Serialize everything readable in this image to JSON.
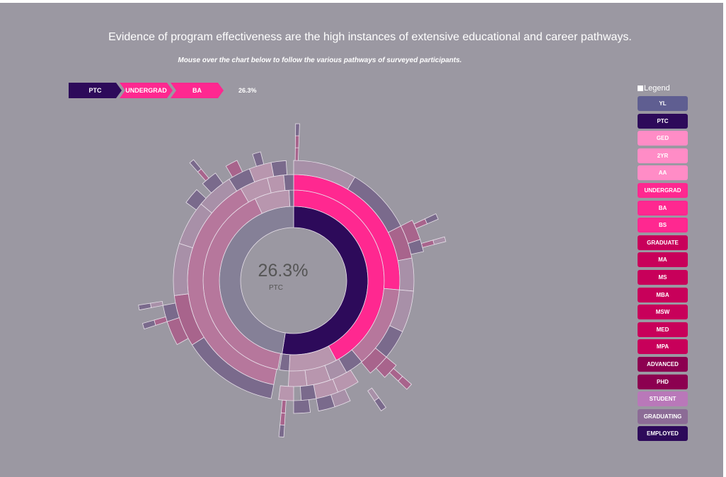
{
  "header": {
    "title": "Evidence of program effectiveness are the high instances of extensive educational and career pathways.",
    "subtitle": "Mouse over the chart below to follow the various pathways of surveyed participants."
  },
  "breadcrumb": {
    "items": [
      {
        "label": "PTC",
        "color": "#2d0a5a"
      },
      {
        "label": "UNDERGRAD",
        "color": "#ff2890"
      },
      {
        "label": "BA",
        "color": "#ff2890"
      }
    ],
    "percentage": "26.3%"
  },
  "legend": {
    "title": "Legend",
    "items": [
      {
        "label": "YL",
        "color": "#5f5e91"
      },
      {
        "label": "PTC",
        "color": "#2d0a5a"
      },
      {
        "label": "GED",
        "color": "#ff8cc6"
      },
      {
        "label": "2YR",
        "color": "#ff8cc6"
      },
      {
        "label": "AA",
        "color": "#ff8cc6"
      },
      {
        "label": "UNDERGRAD",
        "color": "#ff2890"
      },
      {
        "label": "BA",
        "color": "#ff2890"
      },
      {
        "label": "BS",
        "color": "#ff2890"
      },
      {
        "label": "GRADUATE",
        "color": "#c8005a"
      },
      {
        "label": "MA",
        "color": "#c8005a"
      },
      {
        "label": "MS",
        "color": "#c8005a"
      },
      {
        "label": "MBA",
        "color": "#c8005a"
      },
      {
        "label": "MSW",
        "color": "#c8005a"
      },
      {
        "label": "MED",
        "color": "#c8005a"
      },
      {
        "label": "MPA",
        "color": "#c8005a"
      },
      {
        "label": "ADVANCED",
        "color": "#8c0050"
      },
      {
        "label": "PHD",
        "color": "#8c0050"
      },
      {
        "label": "STUDENT",
        "color": "#b978b9"
      },
      {
        "label": "GRADUATING",
        "color": "#8c6c96"
      },
      {
        "label": "EMPLOYED",
        "color": "#2d0a5a"
      }
    ]
  },
  "chart_data": {
    "type": "sunburst",
    "center": {
      "value": "26.3%",
      "label": "PTC"
    },
    "highlighted_path": [
      "PTC",
      "UNDERGRAD",
      "BA"
    ],
    "units": "percent of total participants (start, end) per ring depth",
    "arcs": [
      [
        1,
        0,
        52.5,
        "#2d0a5a"
      ],
      [
        1,
        52.5,
        100,
        "#858097"
      ],
      [
        2,
        0,
        42.2,
        "#ff2890"
      ],
      [
        2,
        42.2,
        50.8,
        "#b896ae"
      ],
      [
        2,
        50.8,
        52.5,
        "#7a6a8c"
      ],
      [
        2,
        52.8,
        93,
        "#b6779c"
      ],
      [
        2,
        93,
        99.2,
        "#b896ae"
      ],
      [
        2,
        99.2,
        100,
        "#7a6a8c"
      ],
      [
        3,
        0,
        26.4,
        "#ff2890"
      ],
      [
        3,
        26.4,
        38.9,
        "#b6779c"
      ],
      [
        3,
        38.9,
        41.7,
        "#7a6a8c"
      ],
      [
        3,
        41.7,
        44.4,
        "#a890a8"
      ],
      [
        3,
        44.4,
        48,
        "#b896ae"
      ],
      [
        3,
        48,
        50.8,
        "#b896ae"
      ],
      [
        3,
        53,
        91.7,
        "#b6779c"
      ],
      [
        3,
        91.7,
        96,
        "#b896ae"
      ],
      [
        3,
        96,
        98.5,
        "#b896ae"
      ],
      [
        3,
        98.5,
        100,
        "#7a6a8c"
      ],
      [
        4,
        0,
        8.5,
        "#a890a8"
      ],
      [
        4,
        8.5,
        17.5,
        "#7a6a8c"
      ],
      [
        4,
        17.5,
        22,
        "#a8648c"
      ],
      [
        4,
        22,
        26.4,
        "#a890a8"
      ],
      [
        4,
        26.4,
        32,
        "#a890a8"
      ],
      [
        4,
        32,
        36,
        "#7a6a8c"
      ],
      [
        4,
        36,
        39,
        "#a8648c"
      ],
      [
        4,
        41,
        44,
        "#b896ae"
      ],
      [
        4,
        44,
        47,
        "#b896ae"
      ],
      [
        4,
        47,
        49,
        "#7a6a8c"
      ],
      [
        4,
        50,
        52,
        "#b896ae"
      ],
      [
        4,
        53,
        66,
        "#7a6a8c"
      ],
      [
        4,
        66,
        73,
        "#a8648c"
      ],
      [
        4,
        73,
        80,
        "#a890a8"
      ],
      [
        4,
        80,
        86,
        "#a890a8"
      ],
      [
        4,
        86,
        91,
        "#a890a8"
      ],
      [
        4,
        91,
        94,
        "#7a6a8c"
      ],
      [
        4,
        94,
        97,
        "#b896ae"
      ],
      [
        4,
        97,
        99,
        "#7a6a8c"
      ],
      [
        5,
        17.5,
        20,
        "#a8648c"
      ],
      [
        5,
        20,
        21.5,
        "#7a6a8c"
      ],
      [
        5,
        36,
        38,
        "#a8648c"
      ],
      [
        5,
        43,
        45,
        "#a890a8"
      ],
      [
        5,
        45,
        47,
        "#7a6a8c"
      ],
      [
        5,
        48,
        50,
        "#7a6a8c"
      ],
      [
        5,
        67,
        70,
        "#a8648c"
      ],
      [
        5,
        70,
        72,
        "#7a6a8c"
      ],
      [
        5,
        85,
        87,
        "#7a6a8c"
      ],
      [
        5,
        88,
        90,
        "#7a6a8c"
      ],
      [
        5,
        91.5,
        93,
        "#a8648c"
      ],
      [
        5,
        95,
        96,
        "#7a6a8c"
      ],
      [
        5,
        0.2,
        0.6,
        "#a8648c"
      ],
      [
        6,
        0.2,
        0.6,
        "#a8648c"
      ],
      [
        7,
        0.2,
        0.6,
        "#7a6a8c"
      ],
      [
        8,
        0.2,
        0.6,
        "#a8648c"
      ],
      [
        6,
        18,
        18.6,
        "#a8648c"
      ],
      [
        7,
        18,
        18.6,
        "#7a6a8c"
      ],
      [
        6,
        20.5,
        21,
        "#a8648c"
      ],
      [
        7,
        20.5,
        21,
        "#a890a8"
      ],
      [
        6,
        36.5,
        37.2,
        "#a8648c"
      ],
      [
        7,
        36.5,
        37.2,
        "#a8648c"
      ],
      [
        8,
        36.5,
        37.2,
        "#7a6a8c"
      ],
      [
        6,
        40,
        40.6,
        "#a890a8"
      ],
      [
        7,
        40,
        40.6,
        "#7a6a8c"
      ],
      [
        5,
        51,
        51.5,
        "#a8648c"
      ],
      [
        6,
        51,
        51.5,
        "#a8648c"
      ],
      [
        7,
        51,
        51.5,
        "#7a6a8c"
      ],
      [
        8,
        51,
        51.5,
        "#a8648c"
      ],
      [
        6,
        70,
        70.6,
        "#a8648c"
      ],
      [
        7,
        70,
        70.6,
        "#7a6a8c"
      ],
      [
        6,
        72,
        72.5,
        "#a890a8"
      ],
      [
        7,
        72,
        72.5,
        "#7a6a8c"
      ],
      [
        6,
        88.5,
        89,
        "#a8648c"
      ],
      [
        7,
        88.5,
        89,
        "#7a6a8c"
      ]
    ]
  }
}
